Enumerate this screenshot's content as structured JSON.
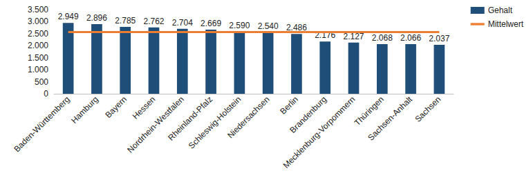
{
  "chart_data": {
    "type": "bar",
    "categories": [
      "Baden-Württemberg",
      "Hamburg",
      "Bayern",
      "Hessen",
      "Nordrhein-Westfalen",
      "Rheinland-Pfalz",
      "Schleswig-Holstein",
      "Niedersachsen",
      "Berlin",
      "Brandenburg",
      "Mecklenburg-Vorpommern",
      "Thüringen",
      "Sachsen-Anhalt",
      "Sachsen"
    ],
    "series": [
      {
        "name": "Gehalt",
        "type": "bar",
        "color": "#1f4e79",
        "values": [
          2949,
          2896,
          2785,
          2762,
          2704,
          2669,
          2590,
          2540,
          2486,
          2176,
          2127,
          2068,
          2066,
          2037
        ],
        "value_labels": [
          "2.949",
          "2.896",
          "2.785",
          "2.762",
          "2.704",
          "2.669",
          "2.590",
          "2.540",
          "2.486",
          "2.176",
          "2.127",
          "2.068",
          "2.066",
          "2.037"
        ]
      },
      {
        "name": "Mittelwert",
        "type": "line",
        "color": "#ed7d31",
        "marker": "none",
        "line_style": "solid",
        "values": [
          2570,
          2570,
          2570,
          2570,
          2570,
          2570,
          2570,
          2570,
          2570,
          2570,
          2570,
          2570,
          2570,
          2570
        ]
      }
    ],
    "ylim": [
      0,
      3500
    ],
    "yticks": [
      0,
      500,
      {
        "value": 1000,
        "label": "1.000"
      },
      {
        "value": 1500,
        "label": "1.500"
      },
      {
        "value": 2000,
        "label": "2.000"
      },
      {
        "value": 2500,
        "label": "2.500"
      },
      {
        "value": 3000,
        "label": "3.000"
      },
      {
        "value": 3500,
        "label": "3.500"
      }
    ],
    "grid": false,
    "legend": "right",
    "data_labels": true
  }
}
